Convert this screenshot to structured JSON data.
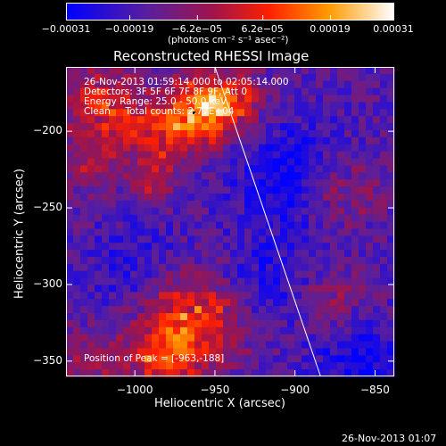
{
  "chart_data": {
    "type": "heatmap",
    "title": "Reconstructed RHESSI Image",
    "xlabel": "Heliocentric X (arcsec)",
    "ylabel": "Heliocentric Y (arcsec)",
    "xlim": [
      -1043,
      -838
    ],
    "ylim": [
      -360,
      -158
    ],
    "xticks": [
      -1000,
      -950,
      -900,
      -850
    ],
    "xtick_labels": [
      "−1000",
      "−950",
      "−900",
      "−850"
    ],
    "yticks": [
      -200,
      -250,
      -300,
      -350
    ],
    "ytick_labels": [
      "−200",
      "−250",
      "−300",
      "−350"
    ],
    "colorbar": {
      "range": [
        -0.00031,
        0.00031
      ],
      "ticks": [
        -0.00031,
        -0.00019,
        -6.2e-05,
        6.2e-05,
        0.00019,
        0.00031
      ],
      "tick_labels": [
        "−0.00031",
        "−0.00019",
        "−6.2e−05",
        "6.2e−05",
        "0.00019",
        "0.00031"
      ],
      "units_label": "(photons cm⁻² s⁻¹ asec⁻²)",
      "colors": [
        "#0000ff",
        "#5a1f9c",
        "#a0144a",
        "#ff2000",
        "#ff9a00",
        "#ffffff"
      ]
    },
    "annotations": {
      "time": "26-Nov-2013 01:59:14.000 to 02:05:14.000",
      "detectors": "Detectors: 3F 5F 6F 7F 8F 9F, Att 0",
      "energy": "Energy Range: 25.0 - 50.0 keV",
      "clean": "Clean     Total counts: 2.77E+04",
      "peak": "Position of Peak = [-963,-188]"
    },
    "limb_line": {
      "x": [
        -950,
        -884
      ],
      "y": [
        -158,
        -360
      ]
    },
    "peak_position": [
      -963,
      -188
    ]
  },
  "footer": {
    "timestamp": "26-Nov-2013 01:07"
  }
}
